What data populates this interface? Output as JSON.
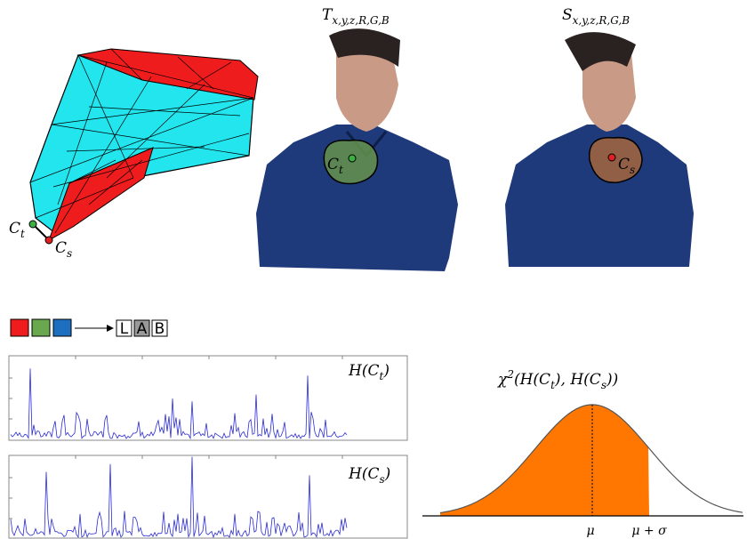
{
  "mesh": {
    "point_t": {
      "base": "C",
      "sub": "t"
    },
    "point_s": {
      "base": "C",
      "sub": "s"
    }
  },
  "views": [
    {
      "title": {
        "base": "T",
        "sub": "x,y,z,R,G,B"
      },
      "point": {
        "base": "C",
        "sub": "t"
      }
    },
    {
      "title": {
        "base": "S",
        "sub": "x,y,z,R,G,B"
      },
      "point": {
        "base": "C",
        "sub": "s"
      }
    }
  ],
  "color_conversion": {
    "channels": [
      "L",
      "A",
      "B"
    ]
  },
  "histograms": [
    {
      "label": {
        "open": "H(",
        "base": "C",
        "sub": "t",
        "close": ")"
      }
    },
    {
      "label": {
        "open": "H(",
        "base": "C",
        "sub": "s",
        "close": ")"
      }
    }
  ],
  "distribution": {
    "title": {
      "symbol": "χ",
      "power": "2",
      "open": "(H(",
      "arg1": {
        "base": "C",
        "sub": "t"
      },
      "mid": "), H(",
      "arg2": {
        "base": "C",
        "sub": "s"
      },
      "close": "))"
    },
    "mu": "μ",
    "mu_sigma": "μ + σ"
  }
}
